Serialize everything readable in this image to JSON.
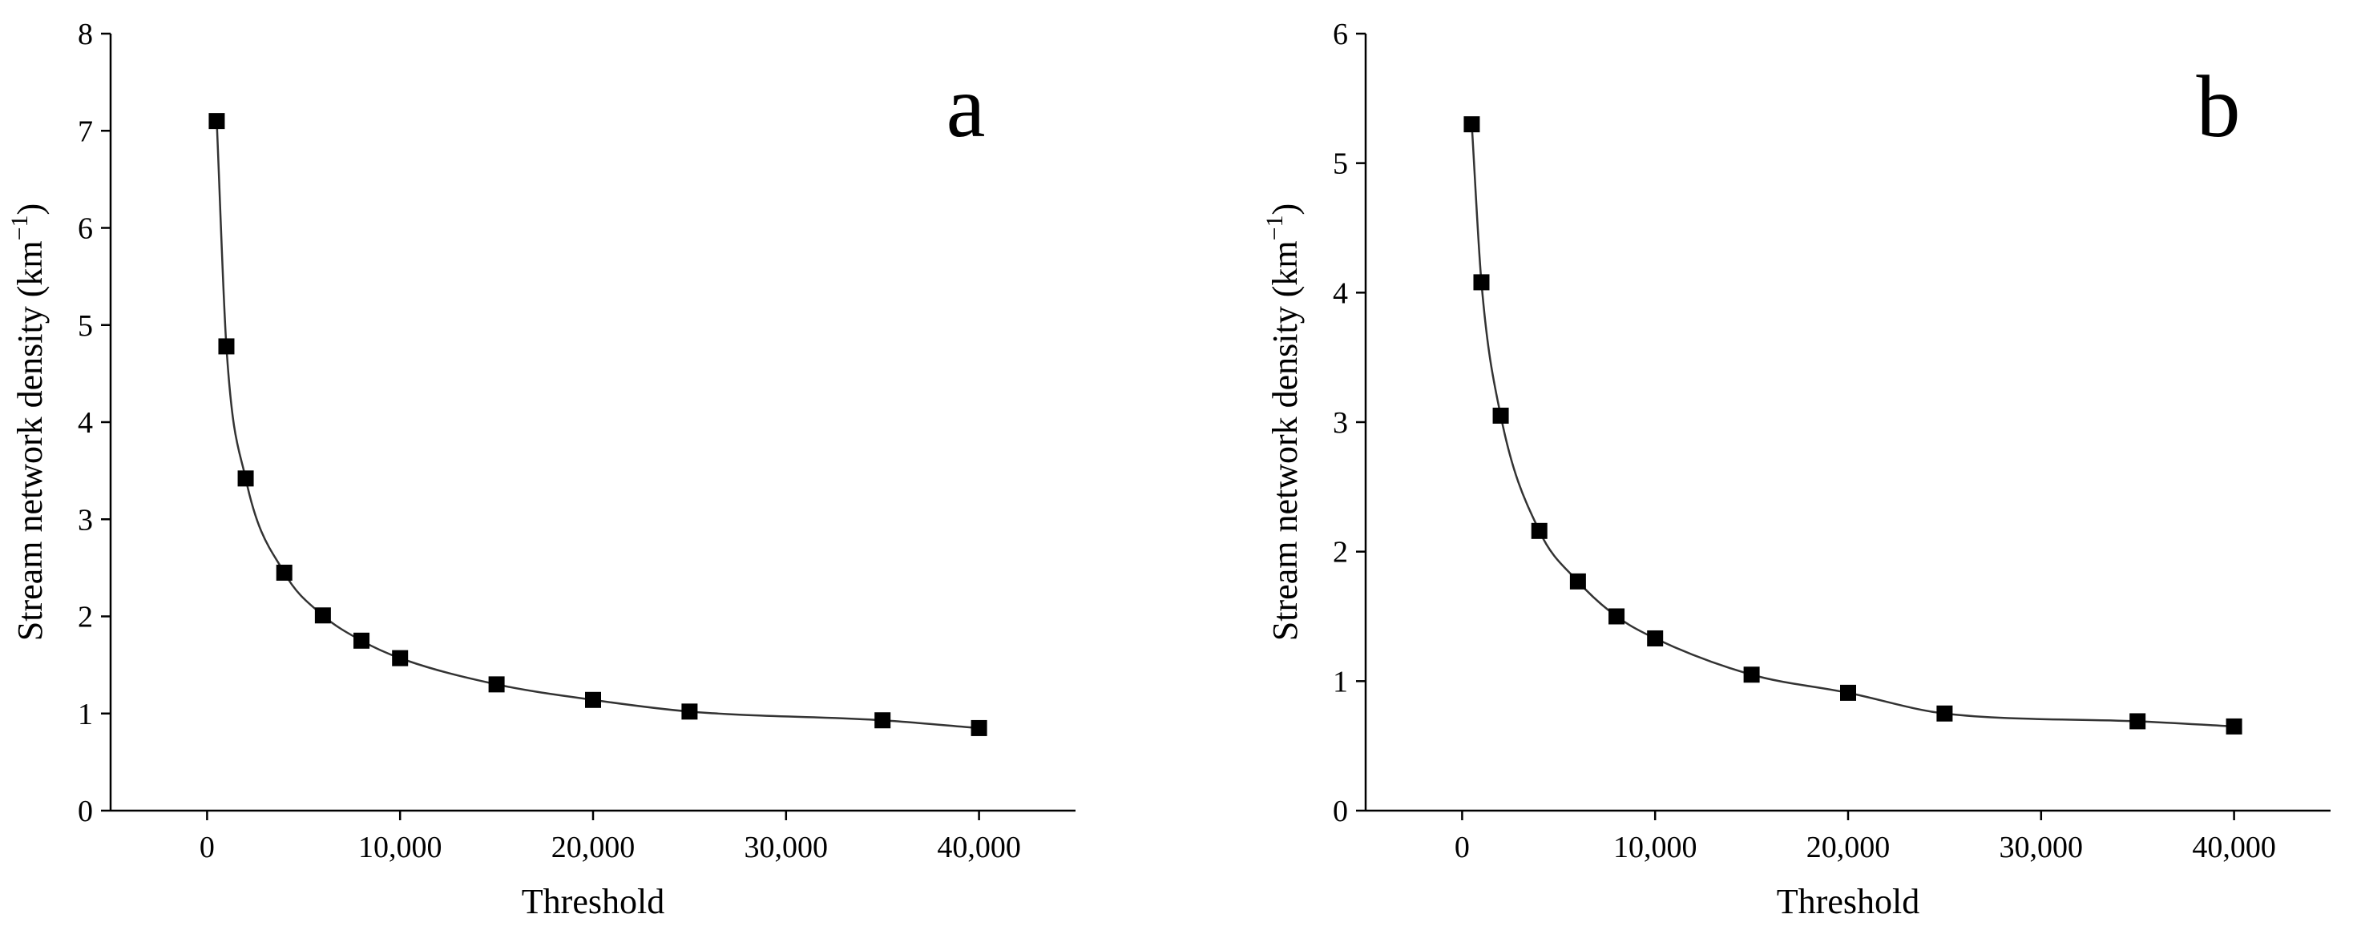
{
  "chart_data": [
    {
      "type": "line",
      "panel_label": "a",
      "xlabel": "Threshold",
      "ylabel": "Stream network density",
      "ylabel_unit": "(km",
      "ylabel_unit_sup": "−1",
      "ylabel_unit_close": ")",
      "xlim": [
        -5000,
        45000
      ],
      "ylim": [
        0,
        8
      ],
      "xticks": [
        0,
        10000,
        20000,
        30000,
        40000
      ],
      "xtick_labels": [
        "0",
        "10,000",
        "20,000",
        "30,000",
        "40,000"
      ],
      "yticks": [
        0,
        1,
        2,
        3,
        4,
        5,
        6,
        7,
        8
      ],
      "ytick_labels": [
        "0",
        "1",
        "2",
        "3",
        "4",
        "5",
        "6",
        "7",
        "8"
      ],
      "marker": "square",
      "color": "#000000",
      "x": [
        500,
        1000,
        2000,
        4000,
        6000,
        8000,
        10000,
        15000,
        20000,
        25000,
        35000,
        40000
      ],
      "y": [
        7.1,
        4.78,
        3.42,
        2.45,
        2.01,
        1.75,
        1.57,
        1.3,
        1.14,
        1.02,
        0.93,
        0.85
      ]
    },
    {
      "type": "line",
      "panel_label": "b",
      "xlabel": "Threshold",
      "ylabel": "Stream network density",
      "ylabel_unit": "(km",
      "ylabel_unit_sup": "−1",
      "ylabel_unit_close": ")",
      "xlim": [
        -5000,
        45000
      ],
      "ylim": [
        0,
        6
      ],
      "xticks": [
        0,
        10000,
        20000,
        30000,
        40000
      ],
      "xtick_labels": [
        "0",
        "10,000",
        "20,000",
        "30,000",
        "40,000"
      ],
      "yticks": [
        0,
        1,
        2,
        3,
        4,
        5,
        6
      ],
      "ytick_labels": [
        "0",
        "1",
        "2",
        "3",
        "4",
        "5",
        "6"
      ],
      "marker": "square",
      "color": "#000000",
      "x": [
        500,
        1000,
        2000,
        4000,
        6000,
        8000,
        10000,
        15000,
        20000,
        25000,
        35000,
        40000
      ],
      "y": [
        5.3,
        4.08,
        3.05,
        2.16,
        1.77,
        1.5,
        1.33,
        1.05,
        0.91,
        0.75,
        0.69,
        0.65
      ]
    }
  ]
}
